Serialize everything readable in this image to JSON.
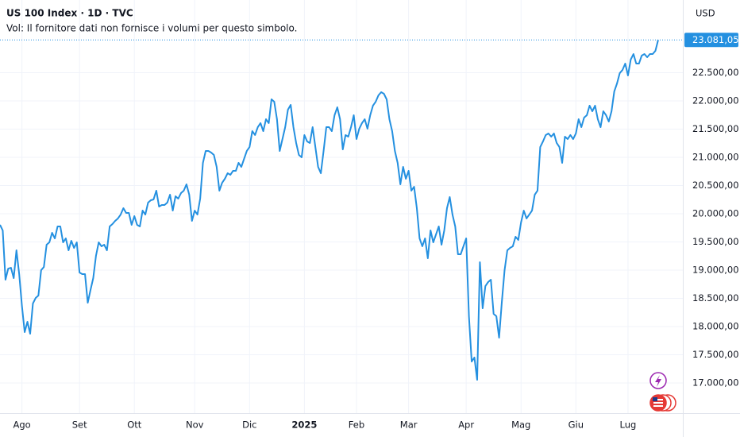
{
  "chart_data": {
    "type": "line",
    "title": "US 100 Index · 1D · TVC",
    "subtitle": "Vol: Il fornitore dati non fornisce i volumi per questo simbolo.",
    "currency": "USD",
    "color": "#2490e0",
    "grid": true,
    "xlim": [
      0,
      249
    ],
    "xticks": [
      {
        "value": 8,
        "label": "Ago"
      },
      {
        "value": 29,
        "label": "Set"
      },
      {
        "value": 49,
        "label": "Ott"
      },
      {
        "value": 71,
        "label": "Nov"
      },
      {
        "value": 91,
        "label": "Dic"
      },
      {
        "value": 111,
        "label": "2025"
      },
      {
        "value": 130,
        "label": "Feb"
      },
      {
        "value": 149,
        "label": "Mar"
      },
      {
        "value": 170,
        "label": "Apr"
      },
      {
        "value": 190,
        "label": "Mag"
      },
      {
        "value": 210,
        "label": "Giu"
      },
      {
        "value": 229,
        "label": "Lug"
      }
    ],
    "ylim": [
      16465,
      23789
    ],
    "yticks": [
      {
        "value": 17000,
        "label": "17.000,00"
      },
      {
        "value": 17500,
        "label": "17.500,00"
      },
      {
        "value": 18000,
        "label": "18.000,00"
      },
      {
        "value": 18500,
        "label": "18.500,00"
      },
      {
        "value": 19000,
        "label": "19.000,00"
      },
      {
        "value": 19500,
        "label": "19.500,00"
      },
      {
        "value": 20000,
        "label": "20.000,00"
      },
      {
        "value": 20500,
        "label": "20.500,00"
      },
      {
        "value": 21000,
        "label": "21.000,00"
      },
      {
        "value": 21500,
        "label": "21.500,00"
      },
      {
        "value": 22000,
        "label": "22.000,00"
      },
      {
        "value": 22500,
        "label": "22.500,00"
      }
    ],
    "price_tag": {
      "value": 23081.05,
      "label": "23.081,05"
    },
    "values": [
      19803,
      19704,
      18831,
      19028,
      19042,
      18859,
      19352,
      18930,
      18366,
      17901,
      18085,
      17873,
      18409,
      18507,
      18549,
      19000,
      19056,
      19451,
      19493,
      19662,
      19563,
      19775,
      19775,
      19493,
      19563,
      19352,
      19521,
      19394,
      19493,
      18958,
      18930,
      18930,
      18423,
      18648,
      18859,
      19254,
      19493,
      19423,
      19451,
      19352,
      19775,
      19817,
      19873,
      19916,
      19986,
      20099,
      20014,
      20014,
      19803,
      19958,
      19803,
      19775,
      20056,
      19986,
      20197,
      20240,
      20254,
      20409,
      20127,
      20155,
      20155,
      20197,
      20338,
      20056,
      20310,
      20268,
      20366,
      20409,
      20521,
      20338,
      19873,
      20056,
      19986,
      20268,
      20902,
      21113,
      21113,
      21085,
      21042,
      20831,
      20409,
      20549,
      20620,
      20718,
      20690,
      20761,
      20761,
      20902,
      20831,
      20972,
      21113,
      21183,
      21465,
      21395,
      21535,
      21606,
      21465,
      21676,
      21606,
      22028,
      21986,
      21676,
      21113,
      21324,
      21535,
      21845,
      21930,
      21535,
      21254,
      21042,
      21000,
      21395,
      21282,
      21254,
      21535,
      21183,
      20831,
      20718,
      21113,
      21535,
      21535,
      21465,
      21747,
      21887,
      21676,
      21141,
      21395,
      21366,
      21535,
      21747,
      21324,
      21507,
      21606,
      21676,
      21507,
      21747,
      21916,
      21986,
      22099,
      22155,
      22127,
      22028,
      21676,
      21465,
      21113,
      20902,
      20521,
      20831,
      20620,
      20761,
      20409,
      20479,
      20099,
      19563,
      19423,
      19563,
      19211,
      19704,
      19493,
      19634,
      19775,
      19451,
      19704,
      20099,
      20296,
      19986,
      19775,
      19282,
      19282,
      19423,
      19563,
      18183,
      17380,
      17451,
      17056,
      19141,
      18324,
      18718,
      18789,
      18831,
      18225,
      18183,
      17803,
      18437,
      19000,
      19352,
      19394,
      19423,
      19592,
      19535,
      19845,
      20056,
      19916,
      19986,
      20056,
      20338,
      20409,
      21183,
      21282,
      21395,
      21423,
      21366,
      21423,
      21254,
      21183,
      20902,
      21366,
      21324,
      21395,
      21324,
      21423,
      21676,
      21535,
      21704,
      21747,
      21916,
      21817,
      21916,
      21676,
      21535,
      21817,
      21747,
      21634,
      21817,
      22169,
      22310,
      22493,
      22549,
      22662,
      22451,
      22733,
      22831,
      22662,
      22662,
      22803,
      22831,
      22775,
      22831,
      22831,
      22888,
      23081.05
    ]
  }
}
